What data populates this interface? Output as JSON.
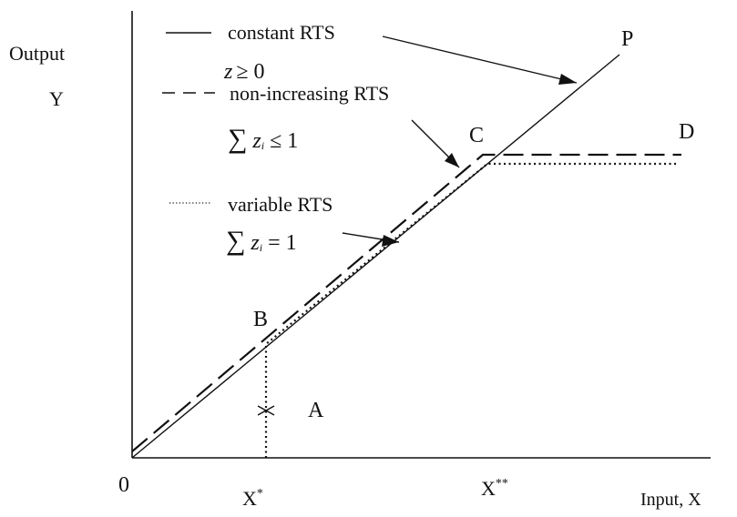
{
  "axes": {
    "y_label_line1": "Output",
    "y_label_line2": "Y",
    "x_label": "Input, X",
    "origin": "0",
    "x_tick_1": "X",
    "x_tick_1_sup": "*",
    "x_tick_2": "X",
    "x_tick_2_sup": "**"
  },
  "points": {
    "A": "A",
    "B": "B",
    "C": "C",
    "D": "D",
    "P": "P"
  },
  "legend": {
    "constant": {
      "label": "constant RTS",
      "z": "z",
      "cond": "≥ 0"
    },
    "non_increasing": {
      "label": "non-increasing RTS",
      "sigma": "∑",
      "z": "z",
      "sub": "i",
      "cond": "≤ 1"
    },
    "variable": {
      "label": "variable RTS",
      "sigma": "∑",
      "z": "z",
      "sub": "i",
      "cond": "= 1"
    }
  }
}
